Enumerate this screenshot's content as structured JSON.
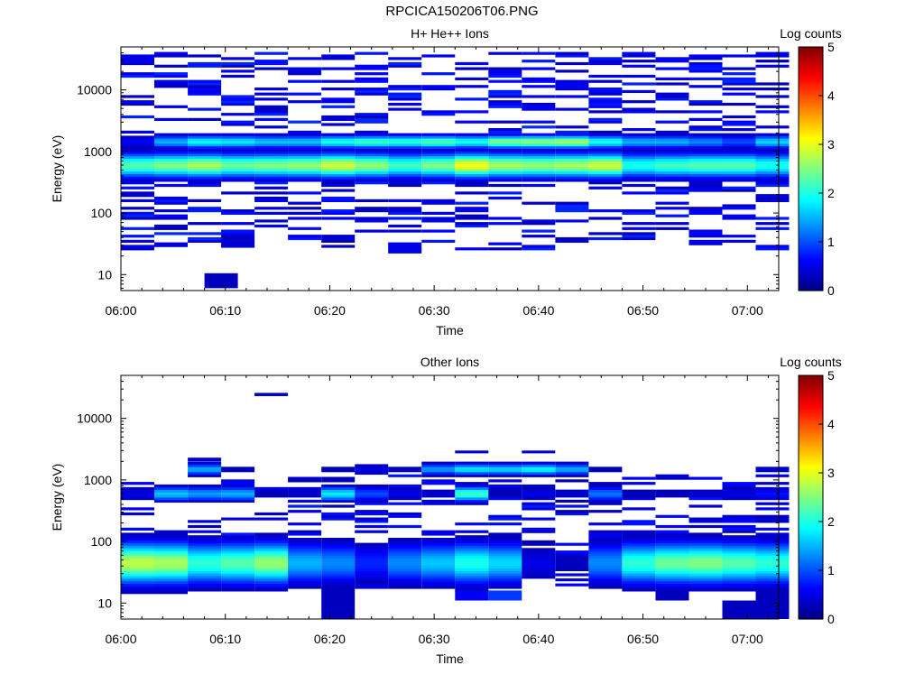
{
  "figure": {
    "title": "RPCICA150206T06.PNG"
  },
  "colormap": {
    "stops": [
      "#000080",
      "#0000ff",
      "#0080ff",
      "#00ffff",
      "#80ff80",
      "#ffff00",
      "#ff8000",
      "#ff0000",
      "#800000"
    ]
  },
  "chart_data": [
    {
      "type": "heatmap",
      "title": "H+ He++ Ions",
      "xlabel": "Time",
      "ylabel": "Energy (eV)",
      "ylog": true,
      "ylim": [
        5.5,
        50000
      ],
      "xlim_minutes": [
        0,
        63
      ],
      "x_ticks": [
        {
          "m": 0,
          "label": "06:00"
        },
        {
          "m": 10,
          "label": "06:10"
        },
        {
          "m": 20,
          "label": "06:20"
        },
        {
          "m": 30,
          "label": "06:30"
        },
        {
          "m": 40,
          "label": "06:40"
        },
        {
          "m": 50,
          "label": "06:50"
        },
        {
          "m": 60,
          "label": "07:00"
        }
      ],
      "y_ticks": [
        {
          "v": 10,
          "label": "10"
        },
        {
          "v": 100,
          "label": "100"
        },
        {
          "v": 1000,
          "label": "1000"
        },
        {
          "v": 10000,
          "label": "10000"
        }
      ],
      "colorbar": {
        "label": "Log counts",
        "min": 0,
        "max": 5,
        "ticks": [
          "0",
          "1",
          "2",
          "3",
          "4",
          "5"
        ]
      },
      "time_bins_minutes": [
        1.6,
        4.8,
        8,
        11.2,
        14.4,
        17.6,
        20.8,
        24,
        27.2,
        30.4,
        33.6,
        36.8,
        40,
        43.2,
        46.4,
        49.6,
        52.8,
        56,
        59.2,
        62.4
      ],
      "time_bin_width_minutes": 3.2,
      "profiles": [
        {
          "center": 600,
          "sigma": 0.13,
          "peak": [
            2.3,
            2.5,
            2.7,
            2.4,
            2.5,
            2.6,
            2.9,
            2.6,
            2.2,
            2.5,
            3.1,
            2.7,
            2.6,
            2.7,
            2.9,
            2.0,
            2.2,
            2.3,
            2.3,
            2.0
          ]
        },
        {
          "center": 1450,
          "sigma": 0.07,
          "peak": [
            0.6,
            1.5,
            1.9,
            1.8,
            1.6,
            1.6,
            2.0,
            2.2,
            2.1,
            2.3,
            2.0,
            2.5,
            2.6,
            2.7,
            2.0,
            1.5,
            1.5,
            1.3,
            1.0,
            1.7
          ]
        }
      ],
      "sparse_band": {
        "min": 25,
        "max": 40000,
        "level": 0.55,
        "density": 0.32
      },
      "extra_cells": [
        {
          "t": 9.6,
          "e0": 6,
          "e1": 10.5,
          "v": 0.3
        },
        {
          "t": 4.8,
          "e0": 28,
          "e1": 33,
          "v": 0.5
        },
        {
          "t": 11.2,
          "e0": 28,
          "e1": 36,
          "v": 0.4
        },
        {
          "t": 27.2,
          "e0": 22,
          "e1": 26,
          "v": 0.5
        },
        {
          "t": 1.6,
          "e0": 27000,
          "e1": 36000,
          "v": 0.5
        }
      ]
    },
    {
      "type": "heatmap",
      "title": "Other Ions",
      "xlabel": "Time",
      "ylabel": "Energy (eV)",
      "ylog": true,
      "ylim": [
        5.5,
        50000
      ],
      "xlim_minutes": [
        0,
        63
      ],
      "x_ticks": [
        {
          "m": 0,
          "label": "06:00"
        },
        {
          "m": 10,
          "label": "06:10"
        },
        {
          "m": 20,
          "label": "06:20"
        },
        {
          "m": 30,
          "label": "06:30"
        },
        {
          "m": 40,
          "label": "06:40"
        },
        {
          "m": 50,
          "label": "06:50"
        },
        {
          "m": 60,
          "label": "07:00"
        }
      ],
      "y_ticks": [
        {
          "v": 10,
          "label": "10"
        },
        {
          "v": 100,
          "label": "100"
        },
        {
          "v": 1000,
          "label": "1000"
        },
        {
          "v": 10000,
          "label": "10000"
        }
      ],
      "colorbar": {
        "label": "Log counts",
        "min": 0,
        "max": 5,
        "ticks": [
          "0",
          "1",
          "2",
          "3",
          "4",
          "5"
        ]
      },
      "time_bins_minutes": [
        1.6,
        4.8,
        8,
        11.2,
        14.4,
        17.6,
        20.8,
        24,
        27.2,
        30.4,
        33.6,
        36.8,
        40,
        43.2,
        46.4,
        49.6,
        52.8,
        56,
        59.2,
        62.4
      ],
      "time_bin_width_minutes": 3.2,
      "profiles": [
        {
          "center": 45,
          "sigma": 0.22,
          "peak": [
            2.8,
            2.7,
            2.1,
            2.3,
            2.6,
            1.5,
            1.3,
            0.8,
            1.3,
            1.6,
            2.0,
            1.7,
            0.5,
            0.3,
            1.3,
            2.1,
            2.4,
            2.5,
            2.3,
            2.1
          ]
        },
        {
          "center": 600,
          "sigma": 0.08,
          "peak": [
            0.5,
            1.6,
            1.4,
            1.5,
            0.3,
            0.4,
            1.8,
            1.0,
            0.5,
            0.4,
            2.2,
            0.3,
            0.5,
            0.4,
            1.2,
            0.3,
            0.3,
            0.4,
            0.5,
            0.7
          ]
        },
        {
          "center": 1500,
          "sigma": 0.06,
          "peak": [
            0.0,
            0.0,
            1.5,
            0.3,
            0.0,
            0.0,
            0.3,
            0.5,
            0.3,
            1.4,
            1.8,
            1.7,
            1.9,
            1.5,
            0.3,
            0.0,
            0.0,
            0.0,
            0.0,
            0.4
          ]
        }
      ],
      "sparse_band": {
        "min": 18,
        "max": 1200,
        "level": 0.5,
        "density": 0.28
      },
      "extra_cells": [
        {
          "t": 14.4,
          "e0": 23000,
          "e1": 26000,
          "v": 0.4
        },
        {
          "t": 8,
          "e0": 2000,
          "e1": 2300,
          "v": 0.4
        },
        {
          "t": 33.6,
          "e0": 2700,
          "e1": 3000,
          "v": 0.4
        },
        {
          "t": 40,
          "e0": 2700,
          "e1": 3000,
          "v": 0.4
        },
        {
          "t": 20.8,
          "e0": 5.5,
          "e1": 18,
          "v": 0.3
        },
        {
          "t": 33.6,
          "e0": 11,
          "e1": 16,
          "v": 0.6
        },
        {
          "t": 36.8,
          "e0": 11,
          "e1": 16,
          "v": 0.9
        },
        {
          "t": 52.8,
          "e0": 11,
          "e1": 16,
          "v": 0.3
        },
        {
          "t": 59.2,
          "e0": 5.5,
          "e1": 11,
          "v": 0.3
        },
        {
          "t": 62.4,
          "e0": 5.5,
          "e1": 16,
          "v": 0.3
        }
      ]
    }
  ]
}
